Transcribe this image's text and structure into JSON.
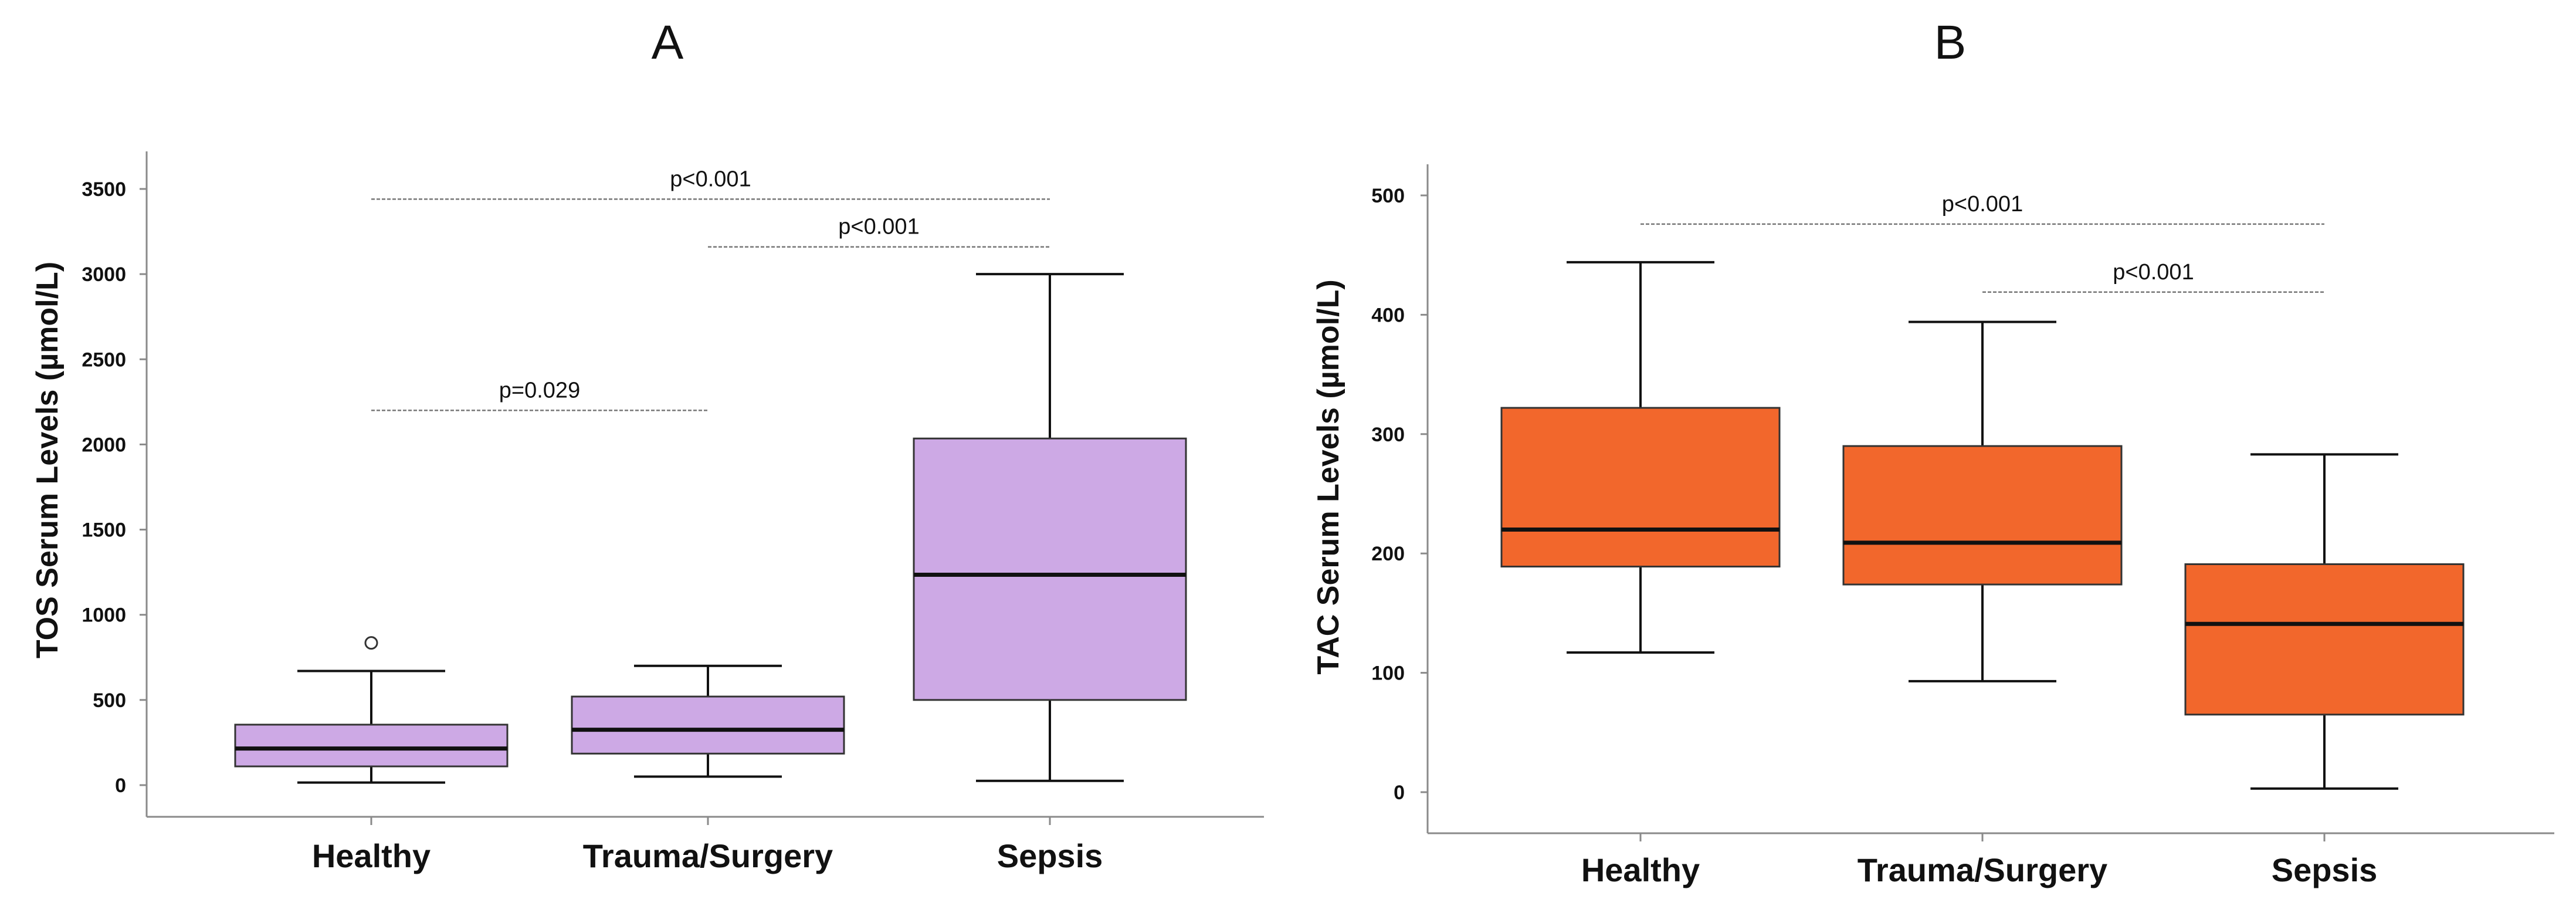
{
  "chart_data": [
    {
      "panel": "A",
      "type": "boxplot",
      "title": "",
      "ylabel": "TOS Serum Levels (µmol/L)",
      "xlabel": "",
      "ylim": [
        -180,
        3580
      ],
      "yticks": [
        0,
        500,
        1000,
        1500,
        2000,
        2500,
        3000,
        3500
      ],
      "categories": [
        "Healthy",
        "Trauma/Surgery",
        "Sepsis"
      ],
      "box_color": "#cda9e5",
      "boxes": [
        {
          "category": "Healthy",
          "whisker_low": 15,
          "q1": 110,
          "median": 215,
          "q3": 355,
          "whisker_high": 670,
          "outliers": [
            835
          ]
        },
        {
          "category": "Trauma/Surgery",
          "whisker_low": 50,
          "q1": 185,
          "median": 325,
          "q3": 520,
          "whisker_high": 700,
          "outliers": []
        },
        {
          "category": "Sepsis",
          "whisker_low": 25,
          "q1": 500,
          "median": 1235,
          "q3": 2035,
          "whisker_high": 3000,
          "outliers": []
        }
      ],
      "comparisons": [
        {
          "from": 0,
          "to": 2,
          "level": 3440,
          "label": "p<0.001"
        },
        {
          "from": 1,
          "to": 2,
          "level": 3160,
          "label": "p<0.001"
        },
        {
          "from": 0,
          "to": 1,
          "level": 2200,
          "label": "p=0.029"
        }
      ]
    },
    {
      "panel": "B",
      "type": "boxplot",
      "title": "",
      "ylabel": "TAC Serum Levels (µmol/L)",
      "xlabel": "",
      "ylim": [
        -20,
        525
      ],
      "yticks": [
        0,
        100,
        200,
        300,
        400,
        500
      ],
      "categories": [
        "Healthy",
        "Trauma/Surgery",
        "Sepsis"
      ],
      "box_color": "#f2672c",
      "boxes": [
        {
          "category": "Healthy",
          "whisker_low": 117,
          "q1": 189,
          "median": 220,
          "q3": 322,
          "whisker_high": 444,
          "outliers": []
        },
        {
          "category": "Trauma/Surgery",
          "whisker_low": 93,
          "q1": 174,
          "median": 209,
          "q3": 290,
          "whisker_high": 394,
          "outliers": []
        },
        {
          "category": "Sepsis",
          "whisker_low": 3,
          "q1": 65,
          "median": 141,
          "q3": 191,
          "whisker_high": 283,
          "outliers": []
        }
      ],
      "comparisons": [
        {
          "from": 0,
          "to": 2,
          "level": 476,
          "label": "p<0.001"
        },
        {
          "from": 1,
          "to": 2,
          "level": 419,
          "label": "p<0.001"
        }
      ]
    }
  ]
}
